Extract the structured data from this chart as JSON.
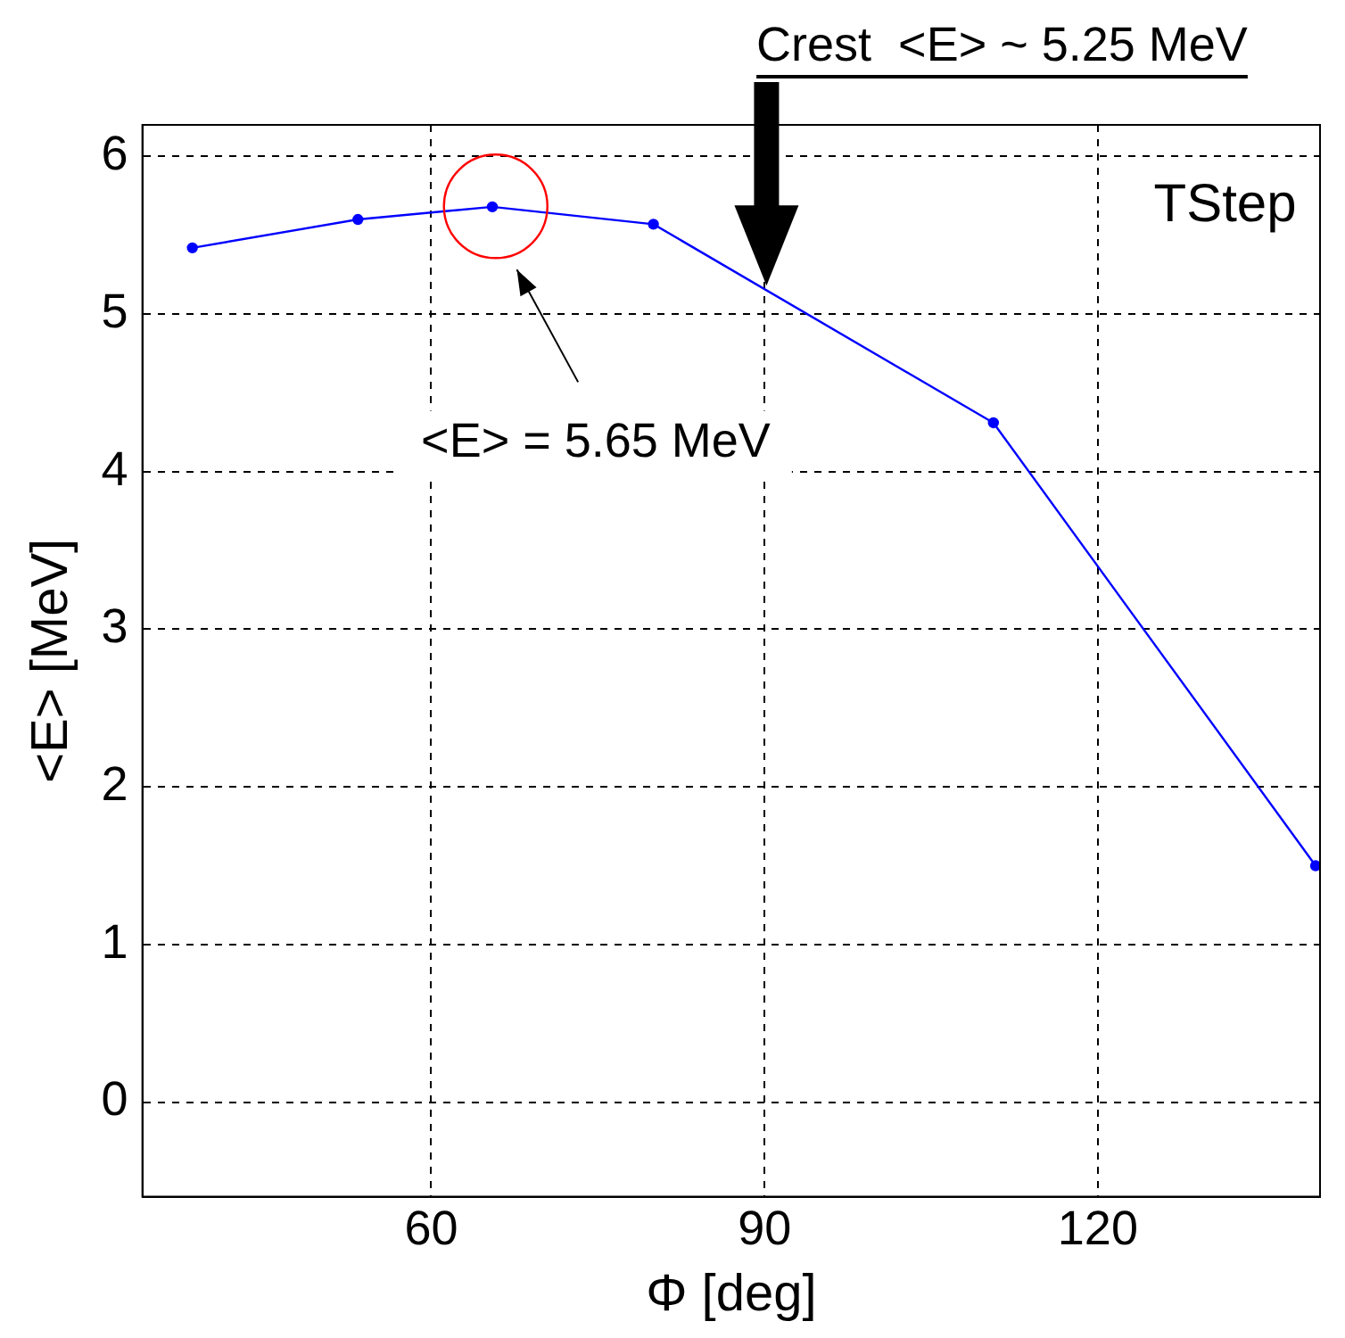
{
  "chart_data": {
    "type": "line",
    "xlabel": "Φ [deg]",
    "ylabel": "<E> [MeV]",
    "x": [
      38.5,
      53.4,
      65.5,
      80,
      110.6,
      139.6
    ],
    "series": [
      {
        "color": "#0000ff",
        "values": [
          5.42,
          5.6,
          5.68,
          5.57,
          4.31,
          1.5
        ]
      }
    ],
    "xlim": [
      34,
      140
    ],
    "xticks": [
      60,
      90,
      120
    ],
    "ylim": [
      -0.6,
      6.2
    ],
    "yticks": [
      0,
      1,
      2,
      3,
      4,
      5,
      6
    ],
    "grid": true,
    "marker": "circle",
    "line_style": "solid",
    "legend": false,
    "annotations": [
      "Crest  <E> ~ 5.25 MeV",
      "<E> = 5.65 MeV",
      "TStep"
    ]
  }
}
